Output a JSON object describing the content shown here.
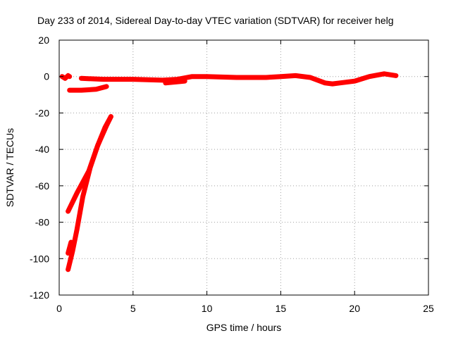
{
  "chart_data": {
    "type": "line",
    "title": "Day 233 of 2014, Sidereal Day-to-day VTEC variation (SDTVAR) for receiver helg",
    "xlabel": "GPS time / hours",
    "ylabel": "SDTVAR / TECUs",
    "xlim": [
      0,
      25
    ],
    "ylim": [
      -120,
      20
    ],
    "xticks": [
      0,
      5,
      10,
      15,
      20,
      25
    ],
    "yticks": [
      20,
      0,
      -20,
      -40,
      -60,
      -80,
      -100,
      -120
    ],
    "grid": true,
    "legend": "none",
    "color": "#ff0000",
    "series": [
      {
        "x": [
          0.2,
          0.4,
          0.6,
          0.7
        ],
        "y": [
          0,
          -1,
          0.5,
          0
        ]
      },
      {
        "x": [
          1.5,
          3,
          5,
          7,
          8,
          9,
          10,
          12,
          14,
          15,
          16,
          17,
          18,
          18.5,
          19,
          20,
          21,
          22,
          22.8
        ],
        "y": [
          -1,
          -1.5,
          -1.5,
          -2,
          -1.5,
          0,
          0,
          -0.5,
          -0.5,
          0,
          0.5,
          -0.5,
          -3.5,
          -4,
          -3.5,
          -2.5,
          0,
          1.5,
          0.5
        ]
      },
      {
        "x": [
          7.2,
          8.5
        ],
        "y": [
          -3.5,
          -2.5
        ]
      },
      {
        "x": [
          0.7,
          1.5,
          2.5,
          3.2
        ],
        "y": [
          -7.5,
          -7.5,
          -7,
          -5.5
        ]
      },
      {
        "x": [
          0.6,
          1.2,
          2.0,
          2.6,
          3.2,
          3.5
        ],
        "y": [
          -74,
          -64,
          -52,
          -38,
          -27,
          -22
        ]
      },
      {
        "x": [
          0.6,
          0.9,
          1.2,
          1.6,
          2.1,
          2.6,
          3.1,
          3.5
        ],
        "y": [
          -106,
          -96,
          -84,
          -66,
          -50,
          -38,
          -28,
          -22
        ]
      },
      {
        "x": [
          0.6,
          0.8
        ],
        "y": [
          -97,
          -91
        ]
      }
    ]
  }
}
